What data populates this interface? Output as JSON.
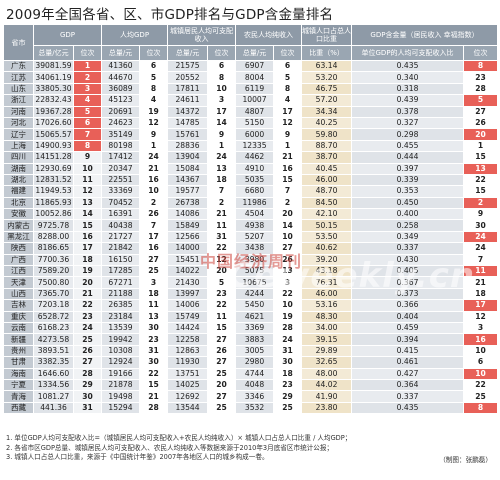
{
  "title": "2009年全国各省、区、市GDP排名与GDP含金量排名",
  "headers": {
    "province": "省市",
    "gdp": "GDP",
    "gdp_total": "总量/亿元",
    "gdp_rank": "位次",
    "pgdp": "人均GDP",
    "pgdp_total": "总量/元",
    "pgdp_rank": "位次",
    "urban": "城镇居民人均可支配收入",
    "urban_total": "总量/元",
    "urban_rank": "位次",
    "rural": "农民人均纯收入",
    "rural_total": "总量/元",
    "rural_rank": "位次",
    "ratio": "城镇人口占总人口比重",
    "ratio_val": "比重（%）",
    "gold": "GDP含金量（居民收入\n幸福指数）",
    "gold_val": "单位GDP的人均可支配收入比",
    "gold_rank": "位次"
  },
  "rows": [
    [
      "广东",
      "39081.59",
      "1",
      "41360",
      "6",
      "21575",
      "6",
      "6907",
      "6",
      "63.14",
      "0.435",
      "8"
    ],
    [
      "江苏",
      "34061.19",
      "2",
      "44670",
      "5",
      "20552",
      "8",
      "8004",
      "5",
      "53.20",
      "0.340",
      "23"
    ],
    [
      "山东",
      "33805.30",
      "3",
      "36089",
      "8",
      "17811",
      "10",
      "6119",
      "8",
      "46.75",
      "0.318",
      "28"
    ],
    [
      "浙江",
      "22832.43",
      "4",
      "45123",
      "4",
      "24611",
      "3",
      "10007",
      "4",
      "57.20",
      "0.439",
      "5"
    ],
    [
      "河南",
      "19367.28",
      "5",
      "20691",
      "19",
      "14372",
      "17",
      "4807",
      "17",
      "34.34",
      "0.378",
      "27"
    ],
    [
      "河北",
      "17026.60",
      "6",
      "24623",
      "12",
      "14785",
      "14",
      "5150",
      "12",
      "40.25",
      "0.327",
      "26"
    ],
    [
      "辽宁",
      "15065.57",
      "7",
      "35149",
      "9",
      "15761",
      "9",
      "6000",
      "9",
      "59.80",
      "0.298",
      "20"
    ],
    [
      "上海",
      "14900.93",
      "8",
      "80198",
      "1",
      "28836",
      "1",
      "12335",
      "1",
      "88.70",
      "0.455",
      "1"
    ],
    [
      "四川",
      "14151.28",
      "9",
      "17412",
      "24",
      "13904",
      "24",
      "4462",
      "21",
      "38.70",
      "0.444",
      "15"
    ],
    [
      "湖南",
      "12930.69",
      "10",
      "20347",
      "21",
      "15084",
      "13",
      "4910",
      "16",
      "40.45",
      "0.397",
      "13"
    ],
    [
      "湖北",
      "12831.52",
      "11",
      "22551",
      "16",
      "14367",
      "18",
      "5035",
      "15",
      "46.00",
      "0.339",
      "22"
    ],
    [
      "福建",
      "11949.53",
      "12",
      "33369",
      "10",
      "19577",
      "7",
      "6680",
      "7",
      "48.70",
      "0.353",
      "15"
    ],
    [
      "北京",
      "11865.93",
      "13",
      "70452",
      "2",
      "26738",
      "2",
      "11986",
      "2",
      "84.50",
      "0.450",
      "2"
    ],
    [
      "安徽",
      "10052.86",
      "14",
      "16391",
      "26",
      "14086",
      "21",
      "4504",
      "20",
      "42.10",
      "0.400",
      "9"
    ],
    [
      "内蒙古",
      "9725.78",
      "15",
      "40438",
      "7",
      "15849",
      "11",
      "4938",
      "14",
      "50.15",
      "0.258",
      "30"
    ],
    [
      "黑龙江",
      "8288.00",
      "16",
      "21727",
      "17",
      "12566",
      "31",
      "5207",
      "10",
      "53.50",
      "0.349",
      "24"
    ],
    [
      "陕西",
      "8186.65",
      "17",
      "21842",
      "16",
      "14000",
      "22",
      "3438",
      "27",
      "40.62",
      "0.337",
      "24"
    ],
    [
      "广西",
      "7700.36",
      "18",
      "16150",
      "27",
      "15451",
      "12",
      "3980",
      "26",
      "39.20",
      "0.430",
      "7"
    ],
    [
      "江西",
      "7589.20",
      "19",
      "17285",
      "25",
      "14022",
      "20",
      "5075",
      "13",
      "43.18",
      "0.405",
      "11"
    ],
    [
      "天津",
      "7500.80",
      "20",
      "67271",
      "3",
      "21430",
      "5",
      "10675",
      "3",
      "76.31",
      "0.367",
      "21"
    ],
    [
      "山西",
      "7365.70",
      "21",
      "21188",
      "18",
      "13997",
      "23",
      "4244",
      "22",
      "46.00",
      "0.373",
      "18"
    ],
    [
      "吉林",
      "7203.18",
      "22",
      "26385",
      "11",
      "14006",
      "22",
      "5450",
      "10",
      "53.16",
      "0.366",
      "17"
    ],
    [
      "重庆",
      "6528.72",
      "23",
      "23184",
      "13",
      "15749",
      "11",
      "4621",
      "19",
      "48.30",
      "0.404",
      "12"
    ],
    [
      "云南",
      "6168.23",
      "24",
      "13539",
      "30",
      "14424",
      "15",
      "3369",
      "28",
      "34.00",
      "0.459",
      "3"
    ],
    [
      "新疆",
      "4273.58",
      "25",
      "19942",
      "23",
      "12258",
      "27",
      "3883",
      "24",
      "39.15",
      "0.394",
      "16"
    ],
    [
      "贵州",
      "3893.51",
      "26",
      "10308",
      "31",
      "12863",
      "26",
      "3005",
      "31",
      "29.89",
      "0.415",
      "10"
    ],
    [
      "甘肃",
      "3382.35",
      "27",
      "12924",
      "30",
      "11930",
      "27",
      "2980",
      "30",
      "32.65",
      "0.461",
      "6"
    ],
    [
      "海南",
      "1646.60",
      "28",
      "19166",
      "22",
      "13751",
      "25",
      "4744",
      "18",
      "48.00",
      "0.427",
      "10"
    ],
    [
      "宁夏",
      "1334.56",
      "29",
      "21878",
      "15",
      "14025",
      "20",
      "4048",
      "23",
      "44.02",
      "0.364",
      "22"
    ],
    [
      "青海",
      "1081.27",
      "30",
      "19498",
      "21",
      "12692",
      "27",
      "3346",
      "29",
      "41.90",
      "0.337",
      "25"
    ],
    [
      "西藏",
      "441.36",
      "31",
      "15294",
      "28",
      "13544",
      "25",
      "3532",
      "25",
      "23.80",
      "0.435",
      "8"
    ]
  ],
  "notes": [
    "1. 单位GDP人均可支配收入比=（城镇居民人均可支配收入+农民人均纯收入）× 城镇人口占总人口比重 / 人均GDP；",
    "2. 各省市区GDP总量、城镇居民人均可支配收入、农民人均纯收入等数据来源于2010年3月底省区市统计公报；",
    "3. 城镇人口占总人口比重，来源于《中国统计年鉴》2007年各地区人口的城乡构成一卷。"
  ],
  "credit": "（制图：张鹏磊）",
  "watermark_cn": "中国经济周刊",
  "watermark_en": "Ceweekly.cn",
  "colors": {
    "accent_red": "#e86058",
    "header_gray": "#8e9aa7",
    "province_gray": "#c3cad2",
    "ratio_tan": "#efe3c8"
  }
}
